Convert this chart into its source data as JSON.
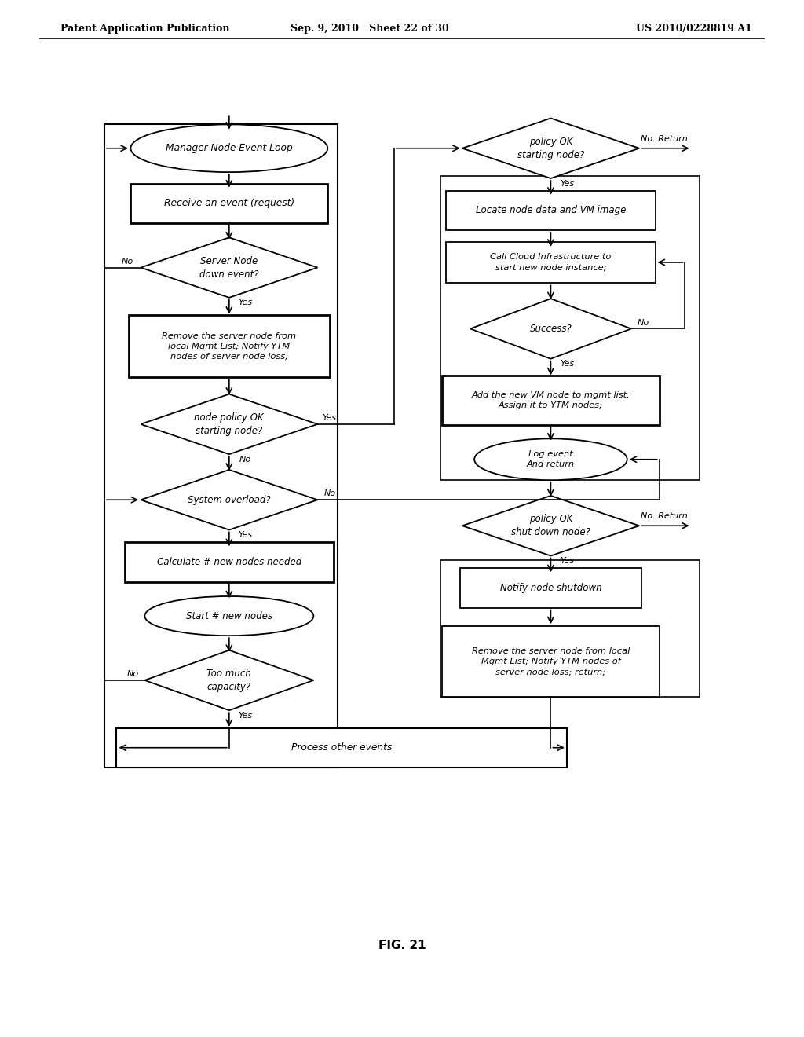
{
  "header_left": "Patent Application Publication",
  "header_mid": "Sep. 9, 2010   Sheet 22 of 30",
  "header_right": "US 2010/0228819 A1",
  "fig_label": "FIG. 21"
}
